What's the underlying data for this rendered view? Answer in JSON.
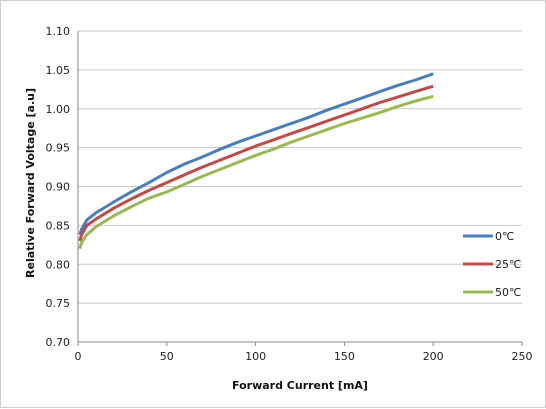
{
  "chart_data": {
    "type": "line",
    "title": "",
    "xlabel": "Forward Current [mA]",
    "ylabel": "Relative Forward Voltage [a.u]",
    "xlim": [
      0,
      250
    ],
    "ylim": [
      0.7,
      1.1
    ],
    "xticks": [
      0,
      50,
      100,
      150,
      200,
      250
    ],
    "xtick_labels": [
      "0",
      "50",
      "100",
      "150",
      "200",
      "250"
    ],
    "yticks": [
      0.7,
      0.75,
      0.8,
      0.85,
      0.9,
      0.95,
      1.0,
      1.05,
      1.1
    ],
    "ytick_labels": [
      "0.70",
      "0.75",
      "0.80",
      "0.85",
      "0.90",
      "0.95",
      "1.00",
      "1.05",
      "1.10"
    ],
    "grid": "horizontal",
    "legend_position": "right",
    "x": [
      1,
      2,
      5,
      10,
      20,
      30,
      40,
      50,
      60,
      70,
      80,
      90,
      100,
      110,
      120,
      130,
      140,
      150,
      160,
      170,
      180,
      190,
      200
    ],
    "series": [
      {
        "name": "0℃",
        "color": "#4a7ebb",
        "values": [
          0.838,
          0.845,
          0.857,
          0.866,
          0.88,
          0.893,
          0.905,
          0.918,
          0.929,
          0.938,
          0.948,
          0.957,
          0.965,
          0.973,
          0.981,
          0.989,
          0.998,
          1.006,
          1.014,
          1.022,
          1.03,
          1.037,
          1.045
        ]
      },
      {
        "name": "25℃",
        "color": "#be4b48",
        "values": [
          0.83,
          0.838,
          0.85,
          0.858,
          0.872,
          0.884,
          0.895,
          0.905,
          0.915,
          0.925,
          0.934,
          0.943,
          0.952,
          0.96,
          0.968,
          0.976,
          0.984,
          0.992,
          1.0,
          1.008,
          1.015,
          1.022,
          1.029
        ]
      },
      {
        "name": "50℃",
        "color": "#98b954",
        "values": [
          0.82,
          0.828,
          0.838,
          0.848,
          0.862,
          0.874,
          0.885,
          0.893,
          0.903,
          0.913,
          0.922,
          0.931,
          0.94,
          0.948,
          0.957,
          0.965,
          0.973,
          0.981,
          0.988,
          0.995,
          1.003,
          1.01,
          1.016
        ]
      }
    ]
  }
}
